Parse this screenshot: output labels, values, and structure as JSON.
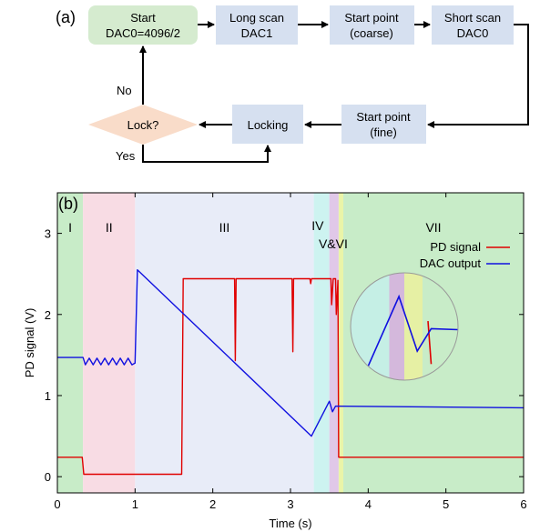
{
  "flowchart": {
    "panel_label": "(a)",
    "nodes": {
      "start": [
        "Start",
        "DAC0=4096/2"
      ],
      "long_scan": [
        "Long scan",
        "DAC1"
      ],
      "start_coarse": [
        "Start point",
        "(coarse)"
      ],
      "short_scan": [
        "Short scan",
        "DAC0"
      ],
      "start_fine": [
        "Start point",
        "(fine)"
      ],
      "locking": [
        "Locking"
      ],
      "lock_decision": [
        "Lock?"
      ]
    },
    "edge_labels": {
      "no": "No",
      "yes": "Yes"
    },
    "colors": {
      "box": "#d6e0f0",
      "start_box": "#d5ebcf",
      "decision": "#f9dcc9"
    }
  },
  "chart_data": {
    "type": "line",
    "panel_label": "(b)",
    "xlabel": "Time (s)",
    "ylabel": "PD signal (V)",
    "xlim": [
      0,
      6
    ],
    "ylim": [
      -0.2,
      3.5
    ],
    "xticks": [
      0,
      1,
      2,
      3,
      4,
      5,
      6
    ],
    "yticks": [
      0,
      1,
      2,
      3
    ],
    "regions": [
      {
        "label": "I",
        "x": [
          0,
          0.33
        ],
        "color": "#c8ecc8"
      },
      {
        "label": "II",
        "x": [
          0.33,
          1.0
        ],
        "color": "#f8dce4"
      },
      {
        "label": "III",
        "x": [
          1.0,
          3.3
        ],
        "color": "#e8ecf8"
      },
      {
        "label": "IV",
        "x": [
          3.3,
          3.5
        ],
        "color": "#cdf3f0"
      },
      {
        "label": "V&VI",
        "x": [
          3.5,
          3.62
        ],
        "color": "#e0c8e8"
      },
      {
        "label": "",
        "x": [
          3.62,
          3.68
        ],
        "color": "#eaf4a8"
      },
      {
        "label": "VII",
        "x": [
          3.68,
          6.0
        ],
        "color": "#c8ecc8"
      }
    ],
    "legend_position": "top-right",
    "series": [
      {
        "name": "PD signal",
        "color": "#e00000",
        "points": [
          [
            0,
            0.24
          ],
          [
            0.32,
            0.24
          ],
          [
            0.34,
            0.03
          ],
          [
            1.6,
            0.03
          ],
          [
            1.62,
            2.44
          ],
          [
            2.28,
            2.44
          ],
          [
            2.29,
            1.43
          ],
          [
            2.3,
            2.44
          ],
          [
            3.02,
            2.44
          ],
          [
            3.03,
            1.54
          ],
          [
            3.04,
            2.44
          ],
          [
            3.25,
            2.44
          ],
          [
            3.26,
            2.38
          ],
          [
            3.27,
            2.44
          ],
          [
            3.52,
            2.44
          ],
          [
            3.53,
            2.12
          ],
          [
            3.55,
            2.44
          ],
          [
            3.58,
            2.44
          ],
          [
            3.59,
            2.0
          ],
          [
            3.61,
            2.42
          ],
          [
            3.62,
            0.24
          ],
          [
            6.0,
            0.24
          ]
        ]
      },
      {
        "name": "DAC output",
        "color": "#1010e0",
        "points": [
          [
            0,
            1.47
          ],
          [
            0.33,
            1.47
          ],
          [
            0.36,
            1.38
          ],
          [
            0.41,
            1.46
          ],
          [
            0.46,
            1.38
          ],
          [
            0.51,
            1.46
          ],
          [
            0.56,
            1.38
          ],
          [
            0.61,
            1.46
          ],
          [
            0.66,
            1.38
          ],
          [
            0.71,
            1.46
          ],
          [
            0.76,
            1.38
          ],
          [
            0.81,
            1.46
          ],
          [
            0.86,
            1.38
          ],
          [
            0.91,
            1.46
          ],
          [
            0.96,
            1.38
          ],
          [
            1.0,
            1.4
          ],
          [
            1.03,
            2.55
          ],
          [
            3.27,
            0.5
          ],
          [
            3.5,
            0.93
          ],
          [
            3.54,
            0.8
          ],
          [
            3.58,
            0.87
          ],
          [
            6.0,
            0.85
          ]
        ]
      }
    ],
    "inset": {
      "series": [
        {
          "name": "PD signal",
          "points": [
            [
              0.72,
              0.45
            ],
            [
              0.75,
              0.85
            ]
          ]
        },
        {
          "name": "DAC output",
          "points": [
            [
              0.15,
              0.9
            ],
            [
              0.45,
              0.22
            ],
            [
              0.62,
              0.73
            ],
            [
              0.75,
              0.52
            ],
            [
              1.0,
              0.53
            ]
          ]
        }
      ]
    }
  }
}
